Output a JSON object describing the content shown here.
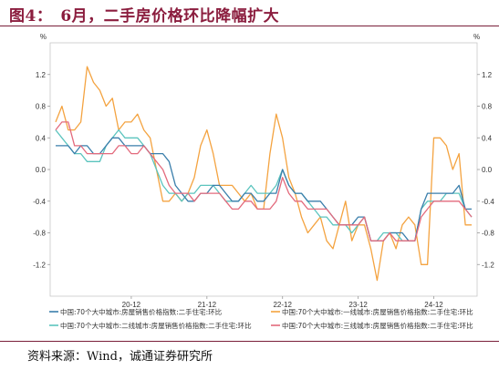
{
  "title": "图4：　6月，二手房价格环比降幅扩大",
  "source": "资料来源：Wind，诚通证券研究所",
  "chart_data": {
    "type": "line",
    "unit_left": "%",
    "unit_right": "%",
    "ylim": [
      -1.6,
      1.6
    ],
    "yticks": [
      "1.2",
      "0.8",
      "0.4",
      "0.0",
      "-0.4",
      "-0.8",
      "-1.2"
    ],
    "ytick_values": [
      1.2,
      0.8,
      0.4,
      0.0,
      -0.4,
      -0.8,
      -1.2
    ],
    "xticks": [
      "20-12",
      "21-12",
      "22-12",
      "23-12",
      "24-12"
    ],
    "xtick_index": [
      12,
      24,
      36,
      48,
      60
    ],
    "x_start": "2019-12",
    "x_end": "2025-06",
    "grid": false,
    "legend_position": "bottom",
    "series": [
      {
        "name": "中国:70个大中城市:房屋销售价格指数:二手住宅:环比",
        "color": "#3a7eab",
        "values": [
          0.3,
          0.3,
          0.3,
          0.2,
          0.3,
          0.3,
          0.2,
          0.2,
          0.3,
          0.4,
          0.4,
          0.3,
          0.3,
          0.3,
          0.3,
          0.2,
          0.2,
          0.2,
          0.1,
          -0.2,
          -0.3,
          -0.4,
          -0.4,
          -0.3,
          -0.3,
          -0.2,
          -0.2,
          -0.3,
          -0.4,
          -0.4,
          -0.3,
          -0.3,
          -0.4,
          -0.4,
          -0.3,
          -0.3,
          0.0,
          -0.2,
          -0.3,
          -0.3,
          -0.4,
          -0.4,
          -0.4,
          -0.5,
          -0.6,
          -0.7,
          -0.7,
          -0.7,
          -0.6,
          -0.6,
          -0.9,
          -0.9,
          -0.9,
          -0.8,
          -0.8,
          -0.8,
          -0.9,
          -0.9,
          -0.5,
          -0.3,
          -0.3,
          -0.3,
          -0.3,
          -0.3,
          -0.2,
          -0.5,
          -0.5
        ]
      },
      {
        "name": "中国:70个大中城市:一线城市:房屋销售价格指数:二手住宅:环比",
        "color": "#f4a340",
        "values": [
          0.6,
          0.8,
          0.5,
          0.5,
          0.6,
          1.3,
          1.1,
          1.0,
          0.8,
          0.9,
          0.5,
          0.6,
          0.6,
          0.7,
          0.5,
          0.4,
          0.0,
          -0.4,
          -0.4,
          -0.3,
          -0.4,
          -0.3,
          -0.1,
          0.3,
          0.5,
          0.2,
          -0.2,
          -0.2,
          -0.2,
          -0.3,
          -0.4,
          -0.3,
          -0.5,
          -0.5,
          0.2,
          0.7,
          0.4,
          -0.1,
          -0.3,
          -0.6,
          -0.8,
          -0.7,
          -0.6,
          -0.9,
          -1.0,
          -0.7,
          -0.4,
          -0.9,
          -0.7,
          -0.7,
          -1.0,
          -1.4,
          -0.9,
          -0.8,
          -1.0,
          -0.7,
          -0.6,
          -0.7,
          -1.2,
          -1.2,
          0.4,
          0.4,
          0.3,
          0.0,
          0.2,
          -0.7,
          -0.7
        ]
      },
      {
        "name": "中国:70个大中城市:二线城市:房屋销售价格指数:二手住宅:环比",
        "color": "#5bc4be",
        "values": [
          0.5,
          0.4,
          0.3,
          0.2,
          0.2,
          0.1,
          0.1,
          0.1,
          0.3,
          0.4,
          0.5,
          0.4,
          0.4,
          0.4,
          0.3,
          0.2,
          0.0,
          -0.2,
          -0.3,
          -0.3,
          -0.4,
          -0.3,
          -0.3,
          -0.2,
          -0.2,
          -0.2,
          -0.3,
          -0.4,
          -0.4,
          -0.4,
          -0.3,
          -0.2,
          -0.3,
          -0.3,
          -0.3,
          -0.2,
          0.0,
          -0.2,
          -0.3,
          -0.3,
          -0.4,
          -0.5,
          -0.6,
          -0.6,
          -0.7,
          -0.7,
          -0.7,
          -0.8,
          -0.7,
          -0.6,
          -0.9,
          -0.9,
          -0.8,
          -0.8,
          -0.8,
          -0.9,
          -0.9,
          -0.9,
          -0.5,
          -0.4,
          -0.4,
          -0.4,
          -0.3,
          -0.3,
          -0.3,
          -0.5,
          -0.6
        ]
      },
      {
        "name": "中国:70个大中城市:三线城市:房屋销售价格指数:二手住宅:环比",
        "color": "#e36a7c",
        "values": [
          0.5,
          0.6,
          0.6,
          0.3,
          0.3,
          0.2,
          0.2,
          0.2,
          0.2,
          0.2,
          0.3,
          0.3,
          0.2,
          0.2,
          0.3,
          0.2,
          0.1,
          0.0,
          -0.2,
          -0.3,
          -0.3,
          -0.3,
          -0.4,
          -0.3,
          -0.3,
          -0.3,
          -0.3,
          -0.4,
          -0.5,
          -0.5,
          -0.4,
          -0.4,
          -0.5,
          -0.5,
          -0.5,
          -0.4,
          -0.1,
          -0.3,
          -0.4,
          -0.4,
          -0.5,
          -0.5,
          -0.5,
          -0.5,
          -0.6,
          -0.7,
          -0.7,
          -0.7,
          -0.7,
          -0.6,
          -0.9,
          -0.9,
          -0.9,
          -0.8,
          -0.9,
          -0.9,
          -0.9,
          -0.9,
          -0.6,
          -0.5,
          -0.4,
          -0.4,
          -0.4,
          -0.4,
          -0.4,
          -0.5,
          -0.6
        ]
      }
    ]
  }
}
